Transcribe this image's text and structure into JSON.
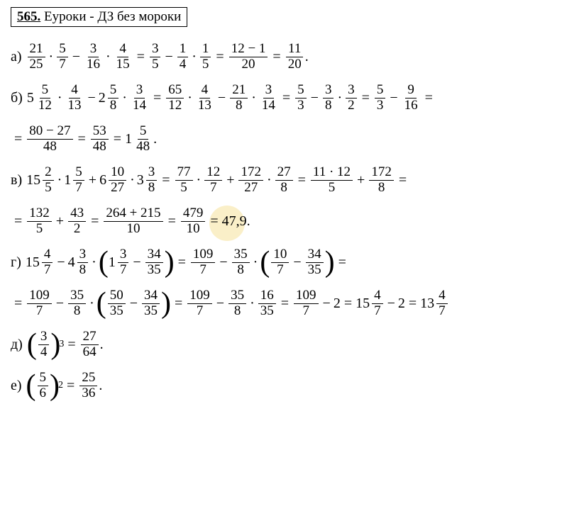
{
  "header": {
    "number": "565.",
    "title": "Еуроки - ДЗ без мороки"
  },
  "watermark": "euroki",
  "colors": {
    "text": "#000000",
    "background": "#ffffff",
    "border": "#000000",
    "wm_red": "#e89090",
    "wm_yellow": "#f0d060",
    "wm_blue": "#70b8e8",
    "wm_gray": "#d0d0d0"
  },
  "typography": {
    "font_family": "Times New Roman",
    "base_size": 20,
    "frac_size": 19,
    "paren_size": 42,
    "sup_size": 14
  },
  "problems": {
    "a": {
      "label": "а)",
      "f1": {
        "n": "21",
        "d": "25"
      },
      "f2": {
        "n": "5",
        "d": "7"
      },
      "f3": {
        "n": "3",
        "d": "16"
      },
      "f4": {
        "n": "4",
        "d": "15"
      },
      "f5": {
        "n": "3",
        "d": "5"
      },
      "f6": {
        "n": "1",
        "d": "4"
      },
      "f7": {
        "n": "1",
        "d": "5"
      },
      "f8": {
        "n": "12 − 1",
        "d": "20"
      },
      "f9": {
        "n": "11",
        "d": "20"
      }
    },
    "b": {
      "label": "б)",
      "m1": {
        "w": "5",
        "n": "5",
        "d": "12"
      },
      "f1": {
        "n": "4",
        "d": "13"
      },
      "m2": {
        "w": "2",
        "n": "5",
        "d": "8"
      },
      "f2": {
        "n": "3",
        "d": "14"
      },
      "f3": {
        "n": "65",
        "d": "12"
      },
      "f4": {
        "n": "4",
        "d": "13"
      },
      "f5": {
        "n": "21",
        "d": "8"
      },
      "f6": {
        "n": "3",
        "d": "14"
      },
      "f7": {
        "n": "5",
        "d": "3"
      },
      "f8": {
        "n": "3",
        "d": "8"
      },
      "f9": {
        "n": "3",
        "d": "2"
      },
      "f10": {
        "n": "5",
        "d": "3"
      },
      "f11": {
        "n": "9",
        "d": "16"
      },
      "f12": {
        "n": "80 − 27",
        "d": "48"
      },
      "f13": {
        "n": "53",
        "d": "48"
      },
      "m3": {
        "w": "1",
        "n": "5",
        "d": "48"
      }
    },
    "v": {
      "label": "в)",
      "m1": {
        "w": "15",
        "n": "2",
        "d": "5"
      },
      "m2": {
        "w": "1",
        "n": "5",
        "d": "7"
      },
      "m3": {
        "w": "6",
        "n": "10",
        "d": "27"
      },
      "m4": {
        "w": "3",
        "n": "3",
        "d": "8"
      },
      "f1": {
        "n": "77",
        "d": "5"
      },
      "f2": {
        "n": "12",
        "d": "7"
      },
      "f3": {
        "n": "172",
        "d": "27"
      },
      "f4": {
        "n": "27",
        "d": "8"
      },
      "f5": {
        "n": "11 · 12",
        "d": "5"
      },
      "f6": {
        "n": "172",
        "d": "8"
      },
      "f7": {
        "n": "132",
        "d": "5"
      },
      "f8": {
        "n": "43",
        "d": "2"
      },
      "f9": {
        "n": "264 + 215",
        "d": "10"
      },
      "f10": {
        "n": "479",
        "d": "10"
      },
      "result": "47,9"
    },
    "g": {
      "label": "г)",
      "m1": {
        "w": "15",
        "n": "4",
        "d": "7"
      },
      "m2": {
        "w": "4",
        "n": "3",
        "d": "8"
      },
      "m3": {
        "w": "1",
        "n": "3",
        "d": "7"
      },
      "f1": {
        "n": "34",
        "d": "35"
      },
      "f2": {
        "n": "109",
        "d": "7"
      },
      "f3": {
        "n": "35",
        "d": "8"
      },
      "f4": {
        "n": "10",
        "d": "7"
      },
      "f5": {
        "n": "34",
        "d": "35"
      },
      "f6": {
        "n": "109",
        "d": "7"
      },
      "f7": {
        "n": "35",
        "d": "8"
      },
      "f8": {
        "n": "50",
        "d": "35"
      },
      "f9": {
        "n": "34",
        "d": "35"
      },
      "f10": {
        "n": "109",
        "d": "7"
      },
      "f11": {
        "n": "35",
        "d": "8"
      },
      "f12": {
        "n": "16",
        "d": "35"
      },
      "f13": {
        "n": "109",
        "d": "7"
      },
      "two": "2",
      "m4": {
        "w": "15",
        "n": "4",
        "d": "7"
      },
      "m5": {
        "w": "13",
        "n": "4",
        "d": "7"
      }
    },
    "d": {
      "label": "д)",
      "base": {
        "n": "3",
        "d": "4"
      },
      "exp": "3",
      "result": {
        "n": "27",
        "d": "64"
      }
    },
    "e": {
      "label": "е)",
      "base": {
        "n": "5",
        "d": "6"
      },
      "exp": "2",
      "result": {
        "n": "25",
        "d": "36"
      }
    }
  }
}
